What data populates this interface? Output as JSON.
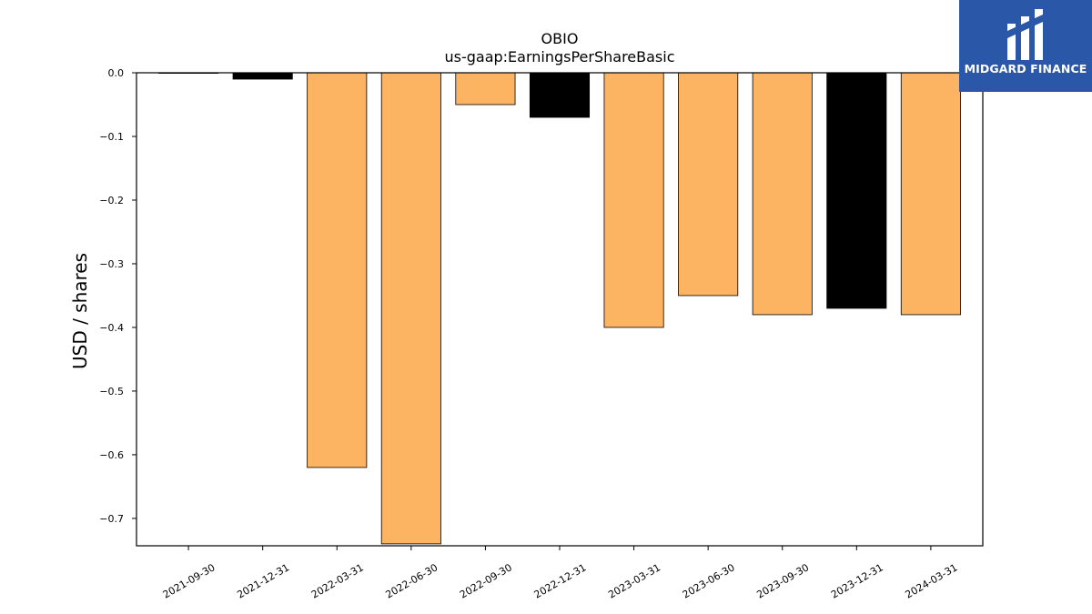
{
  "brand": {
    "name": "MIDGARD FINANCE",
    "bg_color": "#2a57a8",
    "icon": "midgard-logo-icon"
  },
  "chart_data": {
    "type": "bar",
    "title": "OBIO",
    "subtitle": "us-gaap:EarningsPerShareBasic",
    "xlabel": "",
    "ylabel": "USD / shares",
    "categories": [
      "2021-09-30",
      "2021-12-31",
      "2022-03-31",
      "2022-06-30",
      "2022-09-30",
      "2022-12-31",
      "2023-03-31",
      "2023-06-30",
      "2023-09-30",
      "2023-12-31",
      "2024-03-31"
    ],
    "values": [
      0.0,
      -0.01,
      -0.62,
      -0.74,
      -0.05,
      -0.07,
      -0.4,
      -0.35,
      -0.38,
      -0.37,
      -0.38
    ],
    "bar_colors": [
      "#fdb462",
      "#000000",
      "#fdb462",
      "#fdb462",
      "#fdb462",
      "#000000",
      "#fdb462",
      "#fdb462",
      "#fdb462",
      "#000000",
      "#fdb462"
    ],
    "ylim": [
      -0.743,
      0.0
    ],
    "yticks": [
      0.0,
      -0.1,
      -0.2,
      -0.3,
      -0.4,
      -0.5,
      -0.6,
      -0.7
    ],
    "ytick_labels": [
      "0.0",
      "−0.1",
      "−0.2",
      "−0.3",
      "−0.4",
      "−0.5",
      "−0.6",
      "−0.7"
    ],
    "grid": false,
    "legend": "none"
  }
}
